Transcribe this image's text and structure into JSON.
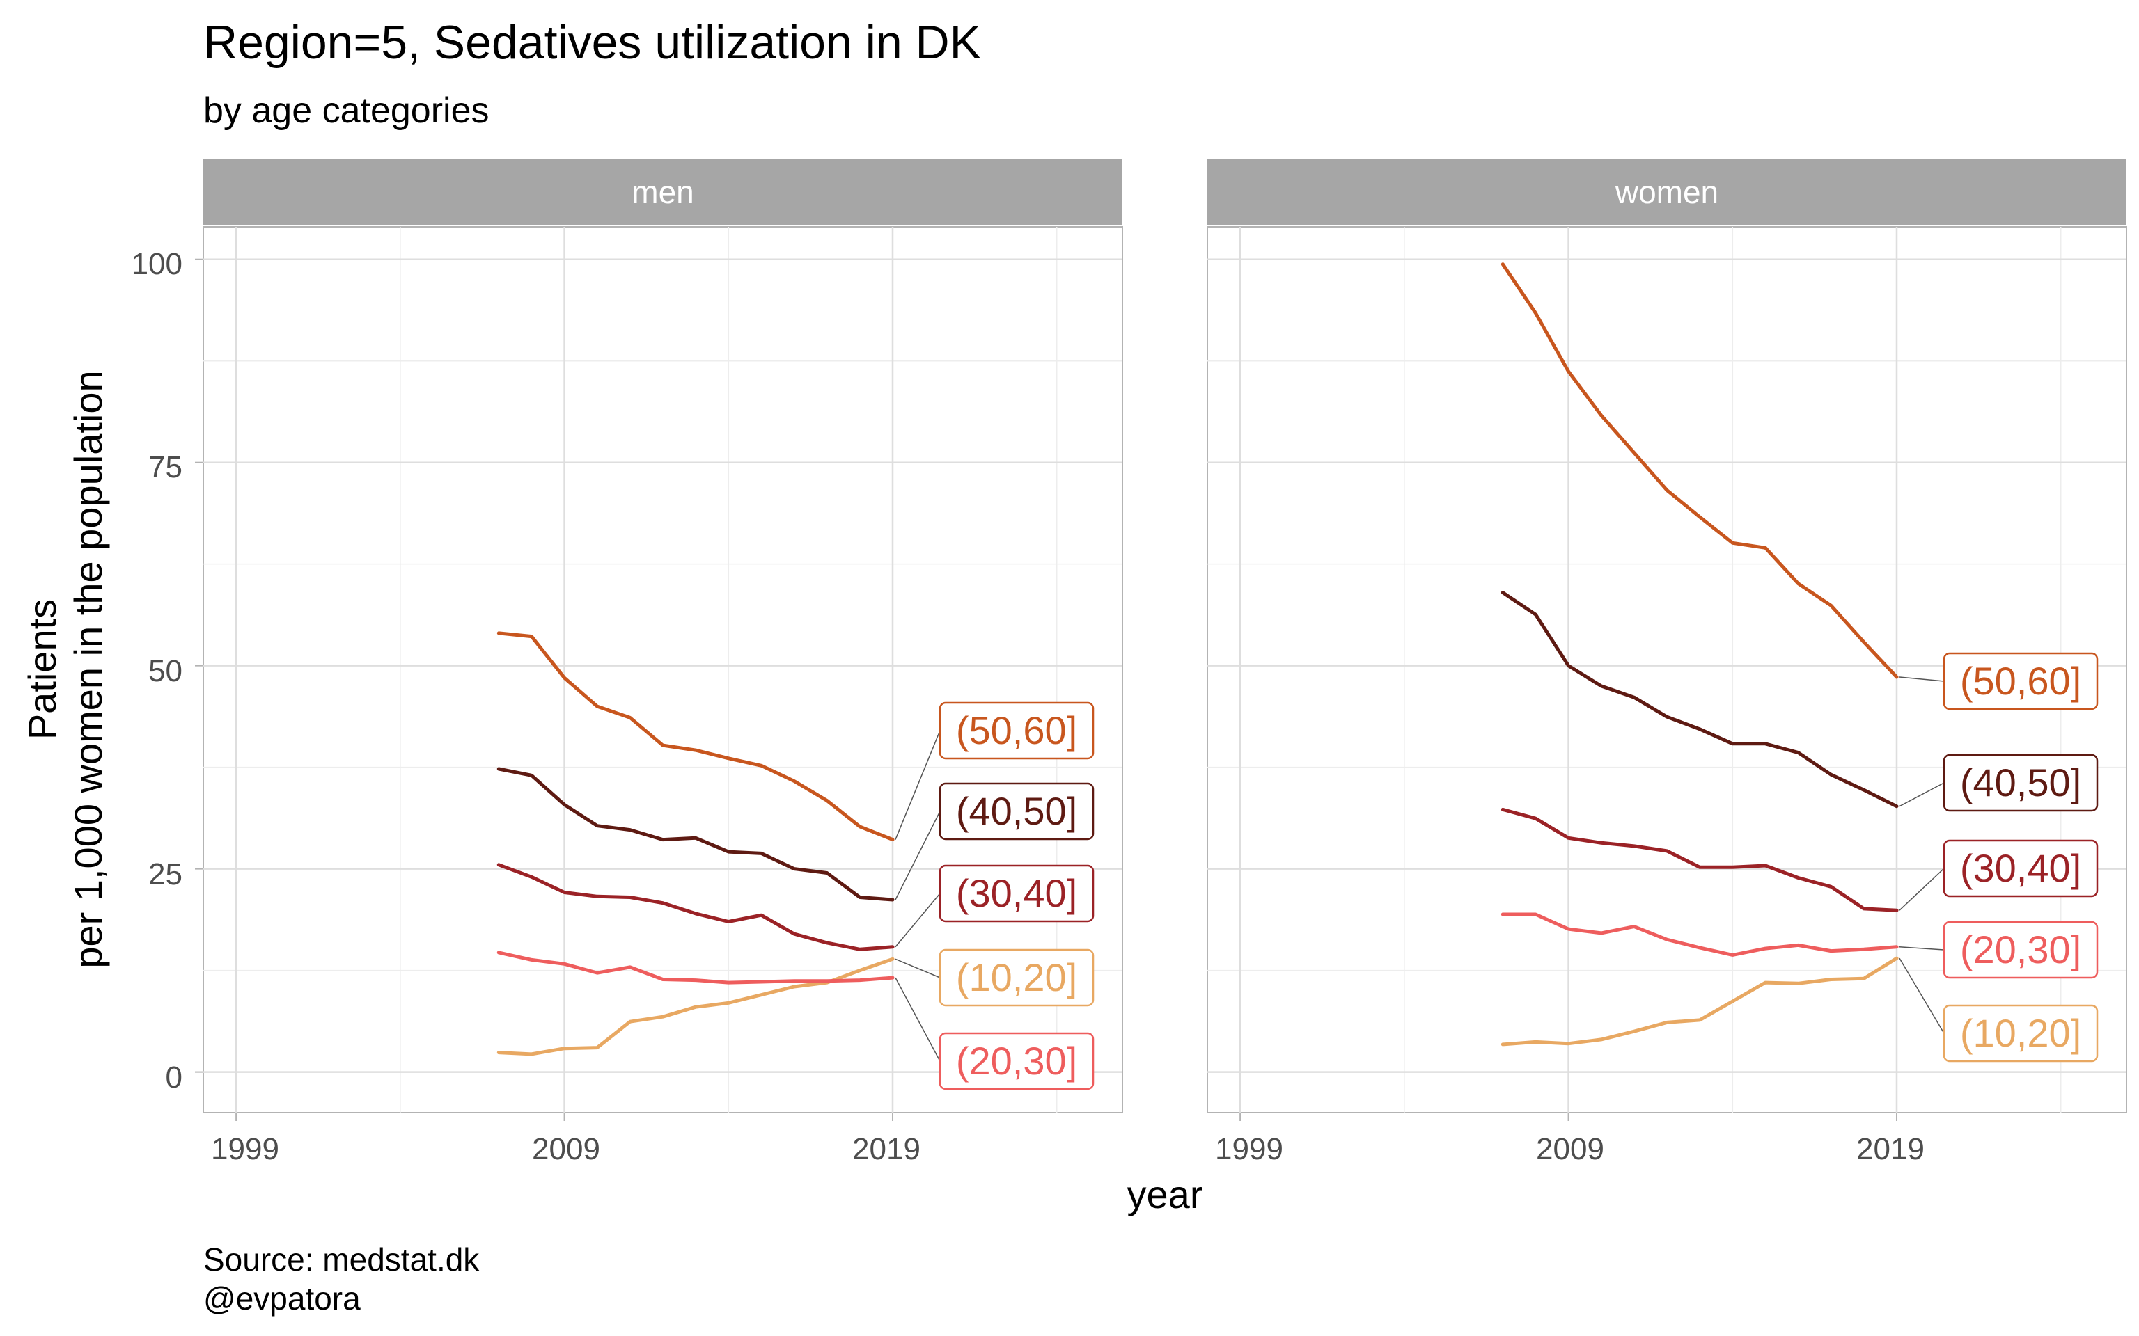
{
  "title": "Region=5, Sedatives utilization in DK",
  "subtitle": "by age categories",
  "caption_lines": [
    "Source: medstat.dk",
    "@evpatora"
  ],
  "colors": {
    "(10,20]": "#E8A862",
    "(20,30]": "#EE5D5D",
    "(30,40]": "#9B2226",
    "(40,50]": "#5E1A12",
    "(50,60]": "#C8561E",
    "strip_bg": "#A6A6A6",
    "grid": "#DEDEDE",
    "panel_border": "#B3B3B3"
  },
  "chart_data": {
    "type": "line",
    "xlabel": "year",
    "ylabel": "Patients\nper 1,000 women in the population",
    "xlim": [
      1998,
      2026
    ],
    "ylim": [
      -5,
      104
    ],
    "x_ticks": [
      1999,
      2009,
      2019
    ],
    "y_ticks": [
      0,
      25,
      50,
      75,
      100
    ],
    "grid": true,
    "legend": "none (direct end labels)",
    "years": [
      2007,
      2008,
      2009,
      2010,
      2011,
      2012,
      2013,
      2014,
      2015,
      2016,
      2017,
      2018,
      2019
    ],
    "facets": [
      {
        "name": "men",
        "series": [
          {
            "name": "(10,20]",
            "values": [
              2.4,
              2.2,
              2.9,
              3.0,
              6.2,
              6.8,
              8.0,
              8.5,
              9.5,
              10.5,
              11.0,
              12.5,
              13.9
            ]
          },
          {
            "name": "(20,30]",
            "values": [
              14.7,
              13.8,
              13.3,
              12.2,
              12.9,
              11.4,
              11.3,
              11.0,
              11.1,
              11.2,
              11.2,
              11.3,
              11.6
            ]
          },
          {
            "name": "(30,40]",
            "values": [
              25.5,
              24.0,
              22.1,
              21.6,
              21.5,
              20.8,
              19.5,
              18.5,
              19.3,
              17.0,
              15.9,
              15.1,
              15.4
            ]
          },
          {
            "name": "(40,50]",
            "values": [
              37.3,
              36.5,
              32.9,
              30.3,
              29.8,
              28.6,
              28.8,
              27.1,
              26.9,
              25.0,
              24.5,
              21.5,
              21.2
            ]
          },
          {
            "name": "(50,60]",
            "values": [
              54.0,
              53.6,
              48.5,
              45.0,
              43.6,
              40.2,
              39.6,
              38.6,
              37.7,
              35.8,
              33.4,
              30.2,
              28.6
            ]
          }
        ]
      },
      {
        "name": "women",
        "series": [
          {
            "name": "(10,20]",
            "values": [
              3.4,
              3.7,
              3.5,
              4.0,
              5.0,
              6.1,
              6.4,
              8.7,
              11.0,
              10.9,
              11.4,
              11.5,
              14.0
            ]
          },
          {
            "name": "(20,30]",
            "values": [
              19.4,
              19.4,
              17.6,
              17.1,
              17.9,
              16.3,
              15.3,
              14.4,
              15.2,
              15.6,
              14.9,
              15.1,
              15.4
            ]
          },
          {
            "name": "(30,40]",
            "values": [
              32.3,
              31.2,
              28.8,
              28.2,
              27.8,
              27.2,
              25.2,
              25.2,
              25.4,
              23.9,
              22.8,
              20.1,
              19.9
            ]
          },
          {
            "name": "(40,50]",
            "values": [
              59.0,
              56.3,
              50.0,
              47.5,
              46.1,
              43.7,
              42.2,
              40.4,
              40.4,
              39.3,
              36.6,
              34.7,
              32.7
            ]
          },
          {
            "name": "(50,60]",
            "values": [
              99.4,
              93.4,
              86.2,
              80.8,
              76.2,
              71.6,
              68.3,
              65.1,
              64.5,
              60.1,
              57.4,
              52.9,
              48.6
            ]
          }
        ]
      }
    ]
  }
}
